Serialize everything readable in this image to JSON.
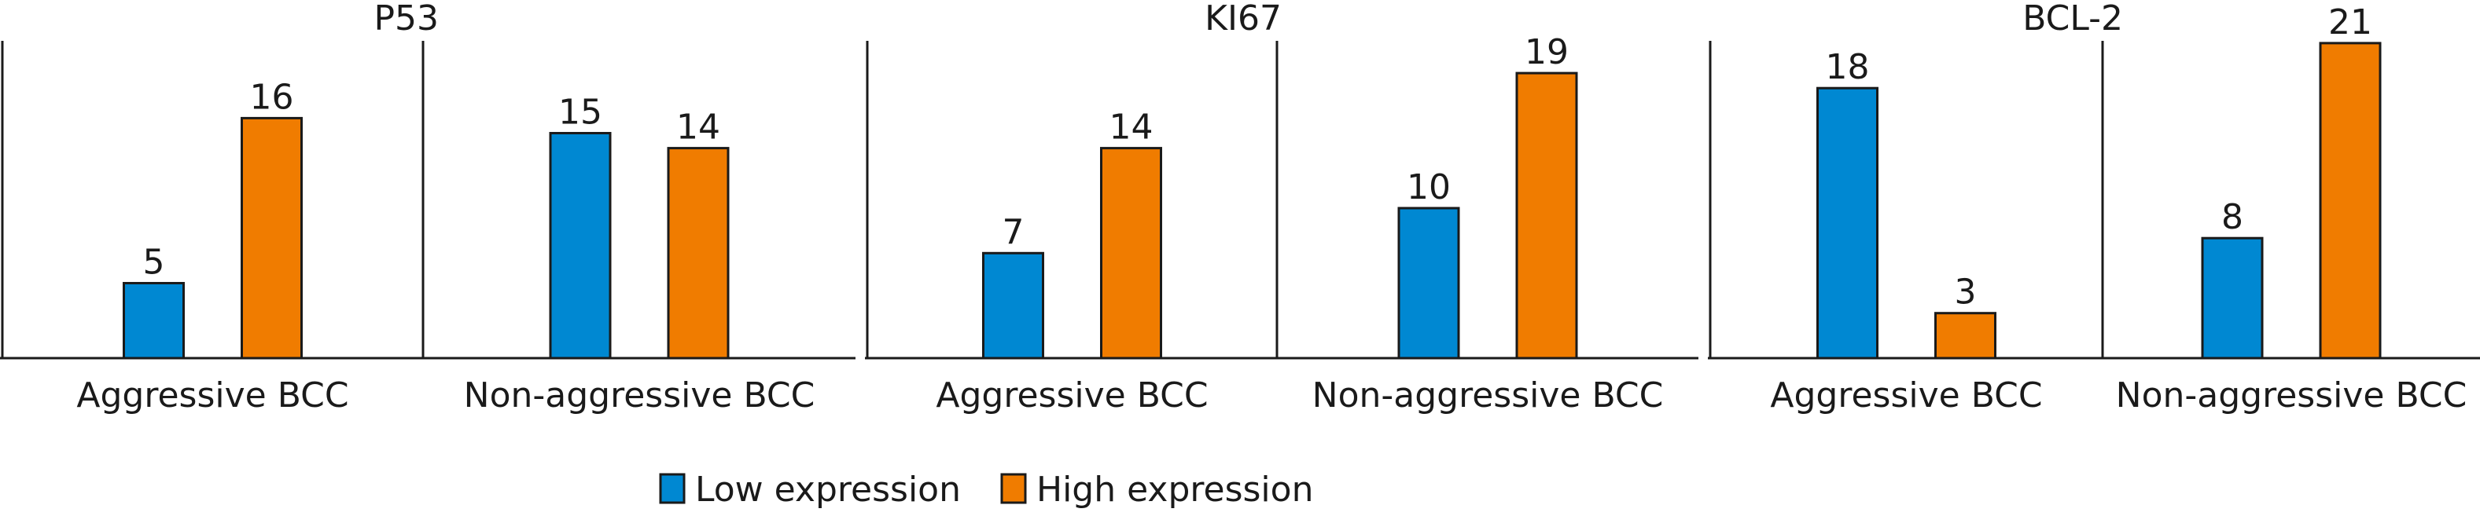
{
  "chart_data": {
    "type": "bar",
    "legend": {
      "position": "bottom-center",
      "entries": [
        {
          "name": "Low expression",
          "color": "#0088D2"
        },
        {
          "name": "High expression",
          "color": "#F07C00"
        }
      ]
    },
    "ylim": [
      0,
      22
    ],
    "panels": [
      {
        "title": "P53",
        "categories": [
          "Aggressive BCC",
          "Non-aggressive BCC"
        ],
        "series": [
          {
            "name": "Low expression",
            "values": [
              5,
              15
            ]
          },
          {
            "name": "High expression",
            "values": [
              16,
              14
            ]
          }
        ]
      },
      {
        "title": "KI67",
        "categories": [
          "Aggressive BCC",
          "Non-aggressive BCC"
        ],
        "series": [
          {
            "name": "Low expression",
            "values": [
              7,
              10
            ]
          },
          {
            "name": "High expression",
            "values": [
              14,
              19
            ]
          }
        ]
      },
      {
        "title": "BCL-2",
        "categories": [
          "Aggressive BCC",
          "Non-aggressive BCC"
        ],
        "series": [
          {
            "name": "Low expression",
            "values": [
              18,
              8
            ]
          },
          {
            "name": "High expression",
            "values": [
              3,
              21
            ]
          }
        ]
      }
    ]
  }
}
